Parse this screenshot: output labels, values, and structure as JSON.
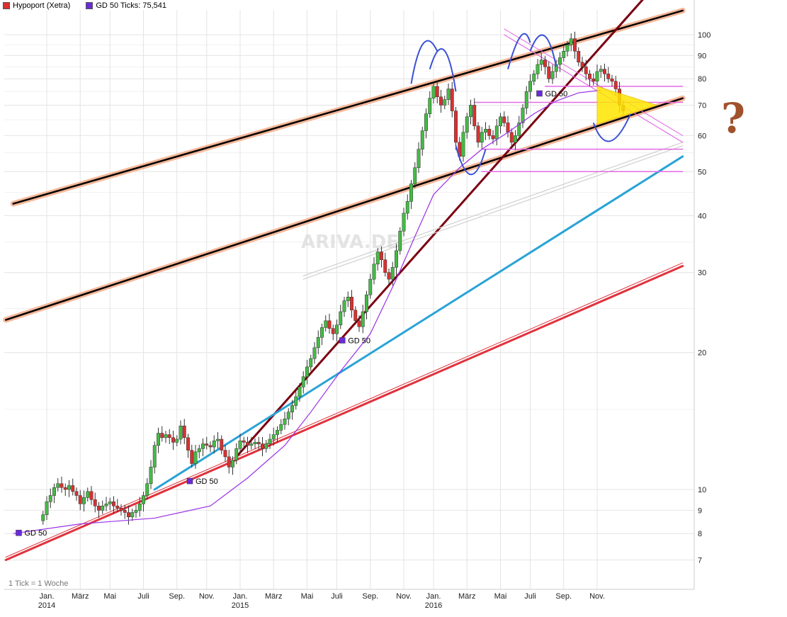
{
  "legend": {
    "series1": {
      "label": "Hypoport (Xetra)",
      "color": "#d93030"
    },
    "series2": {
      "label": "GD 50 Ticks: 75,541",
      "color": "#6a2bd9"
    }
  },
  "watermark": "ARIVA.DE",
  "footer": "1 Tick = 1 Woche",
  "annotation_question": "?",
  "chart_data": {
    "type": "candlestick",
    "scale": "log",
    "ylim": [
      6.3,
      110
    ],
    "y_ticks": [
      {
        "v": 100,
        "label": "100"
      },
      {
        "v": 90,
        "label": "90"
      },
      {
        "v": 80,
        "label": "80"
      },
      {
        "v": 70,
        "label": "70"
      },
      {
        "v": 60,
        "label": "60"
      },
      {
        "v": 50,
        "label": "50"
      },
      {
        "v": 40,
        "label": "40"
      },
      {
        "v": 30,
        "label": "30"
      },
      {
        "v": 20,
        "label": "20"
      },
      {
        "v": 10,
        "label": "10"
      },
      {
        "v": 9,
        "label": "9"
      },
      {
        "v": 8,
        "label": "8"
      },
      {
        "v": 7,
        "label": "7"
      }
    ],
    "x_ticks": [
      {
        "week": 1,
        "month": "Jan.",
        "year": "2014"
      },
      {
        "week": 10,
        "month": "März",
        "year": ""
      },
      {
        "week": 18,
        "month": "Mai",
        "year": ""
      },
      {
        "week": 27,
        "month": "Juli",
        "year": ""
      },
      {
        "week": 36,
        "month": "Sep.",
        "year": ""
      },
      {
        "week": 44,
        "month": "Nov.",
        "year": ""
      },
      {
        "week": 53,
        "month": "Jan.",
        "year": "2015"
      },
      {
        "week": 62,
        "month": "März",
        "year": ""
      },
      {
        "week": 71,
        "month": "Mai",
        "year": ""
      },
      {
        "week": 79,
        "month": "Juli",
        "year": ""
      },
      {
        "week": 88,
        "month": "Sep.",
        "year": ""
      },
      {
        "week": 97,
        "month": "Nov.",
        "year": ""
      },
      {
        "week": 105,
        "month": "Jan.",
        "year": "2016"
      },
      {
        "week": 114,
        "month": "März",
        "year": ""
      },
      {
        "week": 123,
        "month": "Mai",
        "year": ""
      },
      {
        "week": 131,
        "month": "Juli",
        "year": ""
      },
      {
        "week": 140,
        "month": "Sep.",
        "year": ""
      },
      {
        "week": 149,
        "month": "Nov.",
        "year": ""
      }
    ],
    "week_range": [
      -8,
      172
    ],
    "series": [
      {
        "name": "Hypoport (Xetra)",
        "closes": [
          8.8,
          9.4,
          9.7,
          10.1,
          10.3,
          10.1,
          10.0,
          10.2,
          9.9,
          9.7,
          9.3,
          9.6,
          9.9,
          9.5,
          9.2,
          9.0,
          9.2,
          9.3,
          9.4,
          9.2,
          9.1,
          9.0,
          8.9,
          8.7,
          8.9,
          9.0,
          9.3,
          9.7,
          10.3,
          11.2,
          12.5,
          13.3,
          13.0,
          13.2,
          13.0,
          12.7,
          12.9,
          13.8,
          13.0,
          12.2,
          11.4,
          12.1,
          12.3,
          12.6,
          12.5,
          12.4,
          12.8,
          12.9,
          12.2,
          11.8,
          11.2,
          11.6,
          12.3,
          12.8,
          12.7,
          12.5,
          12.6,
          12.7,
          12.6,
          12.3,
          12.6,
          12.9,
          13.2,
          13.5,
          13.9,
          14.3,
          14.8,
          15.3,
          16.0,
          16.8,
          17.7,
          18.6,
          19.4,
          20.5,
          21.6,
          22.7,
          23.5,
          22.6,
          22.0,
          23.0,
          24.6,
          26.0,
          26.5,
          24.8,
          23.5,
          22.8,
          24.6,
          26.8,
          29.0,
          31.3,
          33.3,
          32.0,
          30.0,
          29.0,
          30.8,
          33.5,
          37.0,
          40.5,
          43.0,
          47.0,
          51.0,
          56.0,
          61.5,
          67.0,
          72.5,
          77.0,
          73.0,
          70.0,
          72.0,
          76.0,
          68.0,
          58.0,
          54.0,
          61.0,
          66.0,
          70.0,
          63.0,
          58.0,
          61.0,
          62.0,
          60.0,
          59.0,
          63.0,
          66.0,
          64.0,
          61.0,
          58.0,
          60.0,
          64.0,
          69.0,
          75.0,
          79.0,
          82.0,
          86.0,
          88.0,
          85.0,
          80.0,
          83.0,
          86.0,
          89.0,
          92.0,
          95.0,
          98.0,
          92.0,
          87.0,
          85.0,
          82.0,
          80.0,
          79.0,
          83.0,
          84.0,
          82.0,
          80.0,
          79.0,
          76.0,
          70.0,
          68.0
        ],
        "color_up": "#44bb44",
        "color_down": "#d93030"
      },
      {
        "name": "GD 50",
        "values": [
          [
            -8,
            8.0
          ],
          [
            10,
            8.4
          ],
          [
            30,
            8.65
          ],
          [
            45,
            9.2
          ],
          [
            55,
            10.6
          ],
          [
            65,
            12.5
          ],
          [
            72,
            14.8
          ],
          [
            80,
            18.2
          ],
          [
            88,
            22.0
          ],
          [
            95,
            29.0
          ],
          [
            100,
            36.0
          ],
          [
            105,
            44.5
          ],
          [
            112,
            51.0
          ],
          [
            118,
            56.0
          ],
          [
            125,
            61.0
          ],
          [
            132,
            67.0
          ],
          [
            138,
            71.5
          ],
          [
            144,
            74.5
          ],
          [
            150,
            75.5
          ]
        ],
        "color": "#9b30e6"
      }
    ],
    "gd50_labels": [
      {
        "week": -5,
        "price": 8.0,
        "label": "GD 50"
      },
      {
        "week": 41,
        "price": 10.4,
        "label": "GD 50"
      },
      {
        "week": 82,
        "price": 21.2,
        "label": "GD 50"
      },
      {
        "week": 135,
        "price": 74.0,
        "label": "GD 50"
      }
    ]
  }
}
